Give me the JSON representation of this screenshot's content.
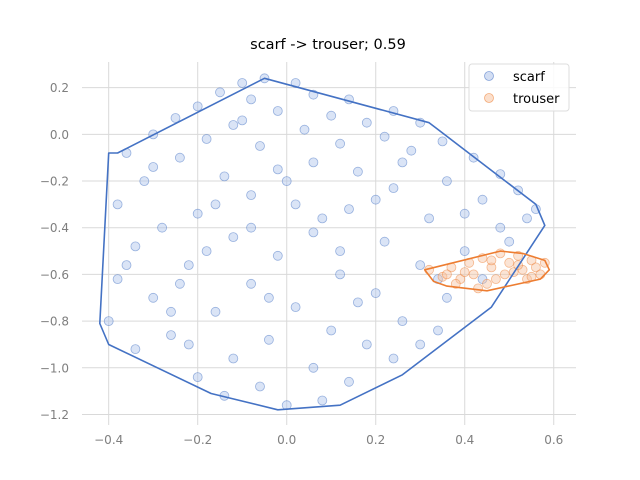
{
  "chart_data": {
    "type": "scatter",
    "title": "scarf -> trouser; 0.59",
    "xlabel": "",
    "ylabel": "",
    "xlim": [
      -0.46,
      0.65
    ],
    "ylim": [
      -1.245,
      0.31
    ],
    "grid": true,
    "legend_position": "top-right",
    "x_ticks": [
      -0.4,
      -0.2,
      0.0,
      0.2,
      0.4,
      0.6
    ],
    "x_tick_labels": [
      "−0.4",
      "−0.2",
      "0.0",
      "0.2",
      "0.4",
      "0.6"
    ],
    "y_ticks": [
      0.2,
      0.0,
      -0.2,
      -0.4,
      -0.6,
      -0.8,
      -1.0,
      -1.2
    ],
    "y_tick_labels": [
      "0.2",
      "0.0",
      "−0.2",
      "−0.4",
      "−0.6",
      "−0.8",
      "−1.0",
      "−1.2"
    ],
    "series": [
      {
        "name": "scarf",
        "color": "#4472c4",
        "point_fill": "#aec3ea",
        "hull": [
          [
            -0.05,
            0.24
          ],
          [
            0.32,
            0.05
          ],
          [
            0.56,
            -0.3
          ],
          [
            0.58,
            -0.39
          ],
          [
            0.46,
            -0.74
          ],
          [
            0.26,
            -1.03
          ],
          [
            0.12,
            -1.16
          ],
          [
            -0.02,
            -1.18
          ],
          [
            -0.17,
            -1.11
          ],
          [
            -0.4,
            -0.9
          ],
          [
            -0.42,
            -0.81
          ],
          [
            -0.4,
            -0.08
          ],
          [
            -0.38,
            -0.08
          ]
        ],
        "points": [
          [
            -0.05,
            0.24
          ],
          [
            -0.1,
            0.22
          ],
          [
            0.02,
            0.22
          ],
          [
            -0.15,
            0.18
          ],
          [
            0.06,
            0.17
          ],
          [
            -0.08,
            0.15
          ],
          [
            0.14,
            0.15
          ],
          [
            -0.2,
            0.12
          ],
          [
            0.24,
            0.1
          ],
          [
            -0.02,
            0.1
          ],
          [
            0.1,
            0.08
          ],
          [
            -0.25,
            0.07
          ],
          [
            0.3,
            0.05
          ],
          [
            0.18,
            0.05
          ],
          [
            -0.12,
            0.04
          ],
          [
            0.04,
            0.02
          ],
          [
            -0.3,
            0.0
          ],
          [
            0.22,
            -0.01
          ],
          [
            -0.18,
            -0.02
          ],
          [
            0.35,
            -0.03
          ],
          [
            0.12,
            -0.04
          ],
          [
            -0.06,
            -0.05
          ],
          [
            -0.36,
            -0.08
          ],
          [
            0.28,
            -0.07
          ],
          [
            0.42,
            -0.1
          ],
          [
            -0.24,
            -0.1
          ],
          [
            0.06,
            -0.12
          ],
          [
            -0.02,
            -0.15
          ],
          [
            0.48,
            -0.17
          ],
          [
            0.16,
            -0.16
          ],
          [
            -0.14,
            -0.18
          ],
          [
            0.36,
            -0.2
          ],
          [
            -0.32,
            -0.2
          ],
          [
            0.52,
            -0.24
          ],
          [
            0.24,
            -0.23
          ],
          [
            -0.08,
            -0.26
          ],
          [
            0.44,
            -0.28
          ],
          [
            0.02,
            -0.3
          ],
          [
            -0.38,
            -0.3
          ],
          [
            0.56,
            -0.32
          ],
          [
            0.14,
            -0.32
          ],
          [
            -0.2,
            -0.34
          ],
          [
            0.32,
            -0.36
          ],
          [
            -0.28,
            -0.4
          ],
          [
            0.48,
            -0.4
          ],
          [
            0.06,
            -0.42
          ],
          [
            -0.12,
            -0.44
          ],
          [
            0.22,
            -0.46
          ],
          [
            -0.34,
            -0.48
          ],
          [
            0.4,
            -0.5
          ],
          [
            -0.02,
            -0.52
          ],
          [
            0.3,
            -0.56
          ],
          [
            -0.22,
            -0.56
          ],
          [
            0.12,
            -0.6
          ],
          [
            -0.38,
            -0.62
          ],
          [
            0.44,
            -0.62
          ],
          [
            -0.08,
            -0.64
          ],
          [
            0.2,
            -0.68
          ],
          [
            -0.3,
            -0.7
          ],
          [
            0.36,
            -0.7
          ],
          [
            0.02,
            -0.74
          ],
          [
            -0.16,
            -0.76
          ],
          [
            -0.4,
            -0.8
          ],
          [
            0.26,
            -0.8
          ],
          [
            0.1,
            -0.84
          ],
          [
            -0.26,
            -0.86
          ],
          [
            -0.04,
            -0.88
          ],
          [
            0.18,
            -0.9
          ],
          [
            -0.34,
            -0.92
          ],
          [
            0.24,
            -0.96
          ],
          [
            -0.12,
            -0.96
          ],
          [
            0.06,
            -1.0
          ],
          [
            -0.2,
            -1.04
          ],
          [
            0.14,
            -1.06
          ],
          [
            -0.06,
            -1.08
          ],
          [
            0.08,
            -1.14
          ],
          [
            -0.14,
            -1.12
          ],
          [
            0.0,
            -1.16
          ],
          [
            -0.22,
            -0.9
          ],
          [
            0.3,
            -0.9
          ],
          [
            0.34,
            -0.84
          ],
          [
            -0.36,
            -0.56
          ],
          [
            0.5,
            -0.46
          ],
          [
            0.54,
            -0.36
          ],
          [
            -0.1,
            0.06
          ],
          [
            0.26,
            -0.12
          ],
          [
            -0.3,
            -0.14
          ],
          [
            0.4,
            -0.34
          ],
          [
            -0.18,
            -0.5
          ],
          [
            0.16,
            -0.72
          ],
          [
            -0.24,
            -0.64
          ],
          [
            0.08,
            -0.36
          ],
          [
            -0.04,
            -0.7
          ],
          [
            0.34,
            -0.62
          ],
          [
            0.0,
            -0.2
          ],
          [
            -0.16,
            -0.3
          ],
          [
            0.2,
            -0.28
          ],
          [
            -0.26,
            -0.76
          ],
          [
            0.12,
            -0.5
          ],
          [
            -0.08,
            -0.4
          ]
        ]
      },
      {
        "name": "trouser",
        "color": "#ed7d31",
        "point_fill": "#f7c4a2",
        "hull": [
          [
            0.31,
            -0.58
          ],
          [
            0.48,
            -0.5
          ],
          [
            0.53,
            -0.51
          ],
          [
            0.58,
            -0.54
          ],
          [
            0.59,
            -0.58
          ],
          [
            0.57,
            -0.62
          ],
          [
            0.45,
            -0.67
          ],
          [
            0.36,
            -0.65
          ],
          [
            0.33,
            -0.63
          ]
        ],
        "points": [
          [
            0.32,
            -0.58
          ],
          [
            0.35,
            -0.61
          ],
          [
            0.37,
            -0.57
          ],
          [
            0.39,
            -0.62
          ],
          [
            0.41,
            -0.55
          ],
          [
            0.42,
            -0.6
          ],
          [
            0.44,
            -0.53
          ],
          [
            0.45,
            -0.64
          ],
          [
            0.46,
            -0.57
          ],
          [
            0.48,
            -0.51
          ],
          [
            0.49,
            -0.6
          ],
          [
            0.5,
            -0.55
          ],
          [
            0.52,
            -0.52
          ],
          [
            0.53,
            -0.58
          ],
          [
            0.54,
            -0.62
          ],
          [
            0.55,
            -0.54
          ],
          [
            0.56,
            -0.57
          ],
          [
            0.57,
            -0.6
          ],
          [
            0.58,
            -0.55
          ],
          [
            0.43,
            -0.66
          ],
          [
            0.47,
            -0.62
          ],
          [
            0.51,
            -0.59
          ],
          [
            0.38,
            -0.64
          ],
          [
            0.4,
            -0.59
          ],
          [
            0.52,
            -0.56
          ],
          [
            0.46,
            -0.54
          ],
          [
            0.36,
            -0.6
          ],
          [
            0.55,
            -0.61
          ]
        ]
      }
    ]
  }
}
